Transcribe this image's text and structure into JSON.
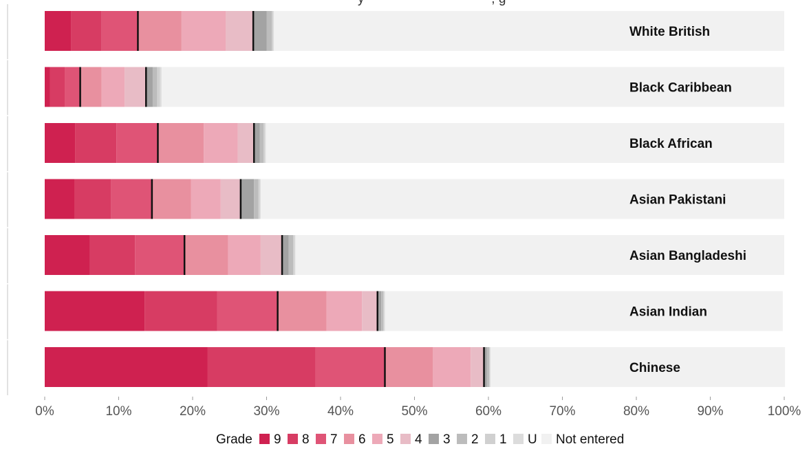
{
  "chart_data": {
    "type": "bar",
    "orientation": "horizontal",
    "stacked": true,
    "legend_title": "Grade",
    "legend_position": "bottom",
    "grid": false,
    "xlim": [
      0,
      100
    ],
    "x_ticks": [
      "0%",
      "10%",
      "20%",
      "30%",
      "40%",
      "50%",
      "60%",
      "70%",
      "80%",
      "90%",
      "100%"
    ],
    "categories": [
      "White British",
      "Black Caribbean",
      "Black African",
      "Asian Pakistani",
      "Asian Bangladeshi",
      "Asian Indian",
      "Chinese"
    ],
    "series": [
      {
        "name": "9",
        "color": "#cf2150",
        "values": [
          3.6,
          0.7,
          4.1,
          4.0,
          6.1,
          13.5,
          22.0
        ]
      },
      {
        "name": "8",
        "color": "#d73c63",
        "values": [
          4.1,
          2.0,
          5.6,
          5.0,
          6.1,
          9.8,
          14.6
        ]
      },
      {
        "name": "7",
        "color": "#df5476",
        "values": [
          4.9,
          2.1,
          5.6,
          5.5,
          6.7,
          8.2,
          9.4
        ]
      },
      {
        "name": "6",
        "color": "#e8909f",
        "values": [
          5.9,
          2.9,
          6.2,
          5.3,
          5.9,
          6.6,
          6.5
        ]
      },
      {
        "name": "5",
        "color": "#eda9b8",
        "values": [
          6.0,
          3.1,
          4.6,
          4.0,
          4.4,
          4.8,
          5.1
        ]
      },
      {
        "name": "4",
        "color": "#e8bcc6",
        "values": [
          3.7,
          2.9,
          2.2,
          2.7,
          2.9,
          2.1,
          1.8
        ]
      },
      {
        "name": "3",
        "color": "#a3a3a3",
        "values": [
          1.8,
          0.9,
          0.8,
          1.8,
          0.9,
          0.5,
          0.4
        ]
      },
      {
        "name": "2",
        "color": "#bcbcbc",
        "values": [
          0.7,
          0.6,
          0.5,
          0.6,
          0.6,
          0.3,
          0.3
        ]
      },
      {
        "name": "1",
        "color": "#d0d0d0",
        "values": [
          0.2,
          0.4,
          0.2,
          0.2,
          0.2,
          0.1,
          0.1
        ]
      },
      {
        "name": "U",
        "color": "#dcdcdc",
        "values": [
          0.1,
          0.2,
          0.1,
          0.1,
          0.1,
          0.1,
          0.1
        ]
      },
      {
        "name": "Not entered",
        "color": "#f1f1f1",
        "values": [
          69.0,
          84.2,
          70.1,
          70.8,
          66.1,
          53.8,
          39.8
        ]
      }
    ],
    "markers": {
      "grade_7_plus": [
        12.6,
        4.8,
        15.3,
        14.5,
        18.9,
        31.5,
        46.0
      ],
      "grade_4_plus": [
        28.2,
        13.7,
        28.3,
        26.5,
        32.1,
        45.0,
        59.4
      ]
    },
    "top_fragment": "y                                   , g"
  }
}
